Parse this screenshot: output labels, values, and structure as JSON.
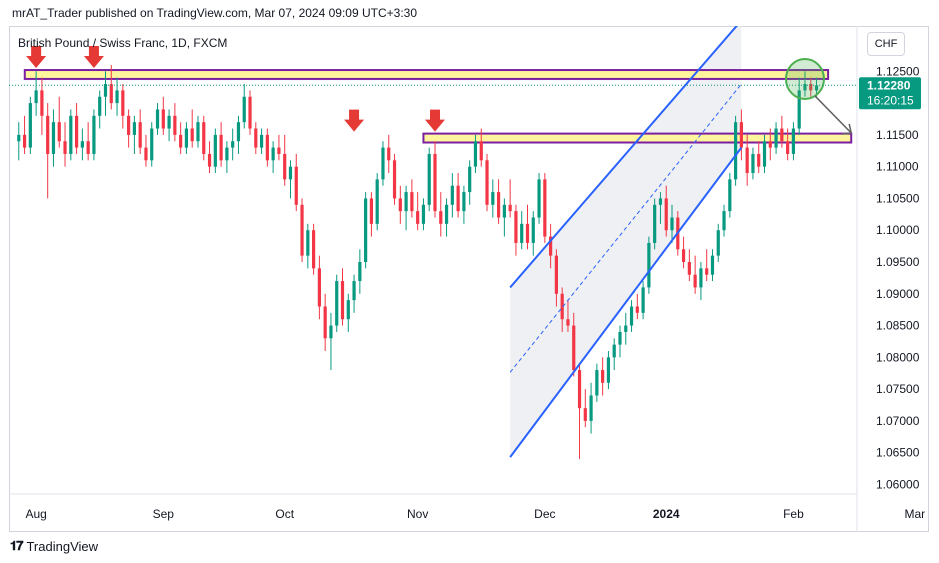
{
  "header": {
    "published": "mrAT_Trader published on TradingView.com, Mar 07, 2024 09:09 UTC+3:30"
  },
  "symbol": {
    "title": "British Pound / Swiss Franc, 1D, FXCM"
  },
  "currency": {
    "label": "CHF"
  },
  "footer": {
    "brand": "TradingView"
  },
  "colors": {
    "up": "#089981",
    "down": "#f23645",
    "channel": "#2962ff",
    "zone_border": "#7b1fa2",
    "zone_fill": "#fff59d",
    "arrow": "#e53935",
    "circle": "#4caf50",
    "price_label": "#089981"
  },
  "chart_data": {
    "type": "candlestick",
    "symbol": "British Pound / Swiss Franc",
    "timeframe": "1D",
    "source": "FXCM",
    "ylim": [
      1.0585,
      1.1315
    ],
    "y_ticks": [
      "1.12500",
      "1.11500",
      "1.11000",
      "1.10500",
      "1.10000",
      "1.09500",
      "1.09000",
      "1.08500",
      "1.08000",
      "1.07500",
      "1.07000",
      "1.06500",
      "1.06000"
    ],
    "x_ticks": [
      {
        "label": "Aug",
        "index": 3
      },
      {
        "label": "Sep",
        "index": 25
      },
      {
        "label": "Oct",
        "index": 46
      },
      {
        "label": "Nov",
        "index": 69
      },
      {
        "label": "Dec",
        "index": 91
      },
      {
        "label": "2024",
        "index": 112
      },
      {
        "label": "Feb",
        "index": 134
      },
      {
        "label": "Mar",
        "index": 155
      }
    ],
    "last_price": {
      "value": "1.12280",
      "countdown": "16:20:15"
    },
    "candles": [
      {
        "o": 1.114,
        "h": 1.117,
        "l": 1.111,
        "c": 1.115
      },
      {
        "o": 1.115,
        "h": 1.118,
        "l": 1.112,
        "c": 1.113
      },
      {
        "o": 1.113,
        "h": 1.121,
        "l": 1.112,
        "c": 1.12
      },
      {
        "o": 1.12,
        "h": 1.125,
        "l": 1.118,
        "c": 1.122
      },
      {
        "o": 1.122,
        "h": 1.124,
        "l": 1.115,
        "c": 1.118
      },
      {
        "o": 1.118,
        "h": 1.12,
        "l": 1.105,
        "c": 1.112
      },
      {
        "o": 1.112,
        "h": 1.119,
        "l": 1.11,
        "c": 1.117
      },
      {
        "o": 1.117,
        "h": 1.121,
        "l": 1.113,
        "c": 1.114
      },
      {
        "o": 1.114,
        "h": 1.117,
        "l": 1.11,
        "c": 1.112
      },
      {
        "o": 1.112,
        "h": 1.119,
        "l": 1.111,
        "c": 1.118
      },
      {
        "o": 1.118,
        "h": 1.12,
        "l": 1.112,
        "c": 1.113
      },
      {
        "o": 1.113,
        "h": 1.116,
        "l": 1.111,
        "c": 1.114
      },
      {
        "o": 1.114,
        "h": 1.117,
        "l": 1.111,
        "c": 1.112
      },
      {
        "o": 1.112,
        "h": 1.119,
        "l": 1.111,
        "c": 1.118
      },
      {
        "o": 1.118,
        "h": 1.122,
        "l": 1.116,
        "c": 1.121
      },
      {
        "o": 1.121,
        "h": 1.125,
        "l": 1.118,
        "c": 1.123
      },
      {
        "o": 1.123,
        "h": 1.126,
        "l": 1.119,
        "c": 1.12
      },
      {
        "o": 1.12,
        "h": 1.124,
        "l": 1.118,
        "c": 1.122
      },
      {
        "o": 1.122,
        "h": 1.123,
        "l": 1.116,
        "c": 1.118
      },
      {
        "o": 1.118,
        "h": 1.119,
        "l": 1.113,
        "c": 1.115
      },
      {
        "o": 1.115,
        "h": 1.118,
        "l": 1.112,
        "c": 1.117
      },
      {
        "o": 1.117,
        "h": 1.119,
        "l": 1.112,
        "c": 1.113
      },
      {
        "o": 1.113,
        "h": 1.115,
        "l": 1.11,
        "c": 1.111
      },
      {
        "o": 1.111,
        "h": 1.117,
        "l": 1.11,
        "c": 1.116
      },
      {
        "o": 1.116,
        "h": 1.12,
        "l": 1.115,
        "c": 1.119
      },
      {
        "o": 1.119,
        "h": 1.121,
        "l": 1.115,
        "c": 1.116
      },
      {
        "o": 1.116,
        "h": 1.119,
        "l": 1.114,
        "c": 1.118
      },
      {
        "o": 1.118,
        "h": 1.12,
        "l": 1.114,
        "c": 1.115
      },
      {
        "o": 1.115,
        "h": 1.117,
        "l": 1.112,
        "c": 1.113
      },
      {
        "o": 1.113,
        "h": 1.117,
        "l": 1.112,
        "c": 1.116
      },
      {
        "o": 1.116,
        "h": 1.119,
        "l": 1.113,
        "c": 1.114
      },
      {
        "o": 1.114,
        "h": 1.118,
        "l": 1.113,
        "c": 1.117
      },
      {
        "o": 1.117,
        "h": 1.118,
        "l": 1.111,
        "c": 1.112
      },
      {
        "o": 1.112,
        "h": 1.114,
        "l": 1.109,
        "c": 1.11
      },
      {
        "o": 1.11,
        "h": 1.116,
        "l": 1.109,
        "c": 1.115
      },
      {
        "o": 1.115,
        "h": 1.117,
        "l": 1.11,
        "c": 1.111
      },
      {
        "o": 1.111,
        "h": 1.114,
        "l": 1.109,
        "c": 1.113
      },
      {
        "o": 1.113,
        "h": 1.116,
        "l": 1.111,
        "c": 1.114
      },
      {
        "o": 1.114,
        "h": 1.118,
        "l": 1.112,
        "c": 1.117
      },
      {
        "o": 1.117,
        "h": 1.123,
        "l": 1.116,
        "c": 1.121
      },
      {
        "o": 1.121,
        "h": 1.122,
        "l": 1.115,
        "c": 1.116
      },
      {
        "o": 1.116,
        "h": 1.117,
        "l": 1.112,
        "c": 1.113
      },
      {
        "o": 1.113,
        "h": 1.116,
        "l": 1.112,
        "c": 1.115
      },
      {
        "o": 1.115,
        "h": 1.116,
        "l": 1.11,
        "c": 1.111
      },
      {
        "o": 1.111,
        "h": 1.114,
        "l": 1.109,
        "c": 1.113
      },
      {
        "o": 1.113,
        "h": 1.115,
        "l": 1.111,
        "c": 1.112
      },
      {
        "o": 1.112,
        "h": 1.115,
        "l": 1.107,
        "c": 1.108
      },
      {
        "o": 1.108,
        "h": 1.111,
        "l": 1.105,
        "c": 1.11
      },
      {
        "o": 1.11,
        "h": 1.112,
        "l": 1.103,
        "c": 1.104
      },
      {
        "o": 1.104,
        "h": 1.105,
        "l": 1.095,
        "c": 1.096
      },
      {
        "o": 1.096,
        "h": 1.101,
        "l": 1.094,
        "c": 1.1
      },
      {
        "o": 1.1,
        "h": 1.101,
        "l": 1.093,
        "c": 1.094
      },
      {
        "o": 1.094,
        "h": 1.096,
        "l": 1.086,
        "c": 1.088
      },
      {
        "o": 1.088,
        "h": 1.09,
        "l": 1.081,
        "c": 1.083
      },
      {
        "o": 1.083,
        "h": 1.087,
        "l": 1.078,
        "c": 1.085
      },
      {
        "o": 1.085,
        "h": 1.093,
        "l": 1.084,
        "c": 1.092
      },
      {
        "o": 1.092,
        "h": 1.094,
        "l": 1.085,
        "c": 1.086
      },
      {
        "o": 1.086,
        "h": 1.09,
        "l": 1.084,
        "c": 1.089
      },
      {
        "o": 1.089,
        "h": 1.093,
        "l": 1.087,
        "c": 1.092
      },
      {
        "o": 1.092,
        "h": 1.097,
        "l": 1.09,
        "c": 1.095
      },
      {
        "o": 1.095,
        "h": 1.106,
        "l": 1.094,
        "c": 1.105
      },
      {
        "o": 1.105,
        "h": 1.106,
        "l": 1.099,
        "c": 1.101
      },
      {
        "o": 1.101,
        "h": 1.109,
        "l": 1.1,
        "c": 1.108
      },
      {
        "o": 1.108,
        "h": 1.114,
        "l": 1.107,
        "c": 1.113
      },
      {
        "o": 1.113,
        "h": 1.115,
        "l": 1.109,
        "c": 1.111
      },
      {
        "o": 1.111,
        "h": 1.112,
        "l": 1.104,
        "c": 1.105
      },
      {
        "o": 1.105,
        "h": 1.107,
        "l": 1.101,
        "c": 1.103
      },
      {
        "o": 1.103,
        "h": 1.107,
        "l": 1.1,
        "c": 1.106
      },
      {
        "o": 1.106,
        "h": 1.108,
        "l": 1.102,
        "c": 1.103
      },
      {
        "o": 1.103,
        "h": 1.106,
        "l": 1.1,
        "c": 1.101
      },
      {
        "o": 1.101,
        "h": 1.105,
        "l": 1.1,
        "c": 1.104
      },
      {
        "o": 1.104,
        "h": 1.113,
        "l": 1.103,
        "c": 1.112
      },
      {
        "o": 1.112,
        "h": 1.114,
        "l": 1.102,
        "c": 1.103
      },
      {
        "o": 1.103,
        "h": 1.106,
        "l": 1.099,
        "c": 1.101
      },
      {
        "o": 1.101,
        "h": 1.105,
        "l": 1.099,
        "c": 1.104
      },
      {
        "o": 1.104,
        "h": 1.109,
        "l": 1.102,
        "c": 1.107
      },
      {
        "o": 1.107,
        "h": 1.109,
        "l": 1.102,
        "c": 1.103
      },
      {
        "o": 1.103,
        "h": 1.107,
        "l": 1.101,
        "c": 1.106
      },
      {
        "o": 1.106,
        "h": 1.111,
        "l": 1.104,
        "c": 1.11
      },
      {
        "o": 1.11,
        "h": 1.115,
        "l": 1.109,
        "c": 1.114
      },
      {
        "o": 1.114,
        "h": 1.116,
        "l": 1.11,
        "c": 1.111
      },
      {
        "o": 1.111,
        "h": 1.112,
        "l": 1.103,
        "c": 1.104
      },
      {
        "o": 1.104,
        "h": 1.108,
        "l": 1.102,
        "c": 1.106
      },
      {
        "o": 1.106,
        "h": 1.108,
        "l": 1.101,
        "c": 1.102
      },
      {
        "o": 1.102,
        "h": 1.105,
        "l": 1.099,
        "c": 1.104
      },
      {
        "o": 1.104,
        "h": 1.108,
        "l": 1.102,
        "c": 1.103
      },
      {
        "o": 1.103,
        "h": 1.104,
        "l": 1.096,
        "c": 1.098
      },
      {
        "o": 1.098,
        "h": 1.103,
        "l": 1.097,
        "c": 1.101
      },
      {
        "o": 1.101,
        "h": 1.104,
        "l": 1.097,
        "c": 1.098
      },
      {
        "o": 1.098,
        "h": 1.103,
        "l": 1.096,
        "c": 1.102
      },
      {
        "o": 1.102,
        "h": 1.109,
        "l": 1.101,
        "c": 1.108
      },
      {
        "o": 1.108,
        "h": 1.109,
        "l": 1.098,
        "c": 1.099
      },
      {
        "o": 1.099,
        "h": 1.101,
        "l": 1.094,
        "c": 1.096
      },
      {
        "o": 1.096,
        "h": 1.097,
        "l": 1.088,
        "c": 1.09
      },
      {
        "o": 1.09,
        "h": 1.091,
        "l": 1.084,
        "c": 1.086
      },
      {
        "o": 1.086,
        "h": 1.089,
        "l": 1.084,
        "c": 1.085
      },
      {
        "o": 1.085,
        "h": 1.087,
        "l": 1.077,
        "c": 1.078
      },
      {
        "o": 1.078,
        "h": 1.079,
        "l": 1.064,
        "c": 1.072
      },
      {
        "o": 1.072,
        "h": 1.075,
        "l": 1.069,
        "c": 1.07
      },
      {
        "o": 1.07,
        "h": 1.076,
        "l": 1.068,
        "c": 1.074
      },
      {
        "o": 1.074,
        "h": 1.079,
        "l": 1.073,
        "c": 1.078
      },
      {
        "o": 1.078,
        "h": 1.08,
        "l": 1.074,
        "c": 1.076
      },
      {
        "o": 1.076,
        "h": 1.081,
        "l": 1.075,
        "c": 1.08
      },
      {
        "o": 1.08,
        "h": 1.083,
        "l": 1.078,
        "c": 1.082
      },
      {
        "o": 1.082,
        "h": 1.085,
        "l": 1.08,
        "c": 1.084
      },
      {
        "o": 1.084,
        "h": 1.087,
        "l": 1.082,
        "c": 1.085
      },
      {
        "o": 1.085,
        "h": 1.089,
        "l": 1.084,
        "c": 1.088
      },
      {
        "o": 1.088,
        "h": 1.09,
        "l": 1.086,
        "c": 1.087
      },
      {
        "o": 1.087,
        "h": 1.092,
        "l": 1.086,
        "c": 1.091
      },
      {
        "o": 1.091,
        "h": 1.099,
        "l": 1.09,
        "c": 1.098
      },
      {
        "o": 1.098,
        "h": 1.105,
        "l": 1.097,
        "c": 1.104
      },
      {
        "o": 1.104,
        "h": 1.106,
        "l": 1.101,
        "c": 1.105
      },
      {
        "o": 1.105,
        "h": 1.107,
        "l": 1.099,
        "c": 1.1
      },
      {
        "o": 1.1,
        "h": 1.104,
        "l": 1.098,
        "c": 1.102
      },
      {
        "o": 1.102,
        "h": 1.103,
        "l": 1.096,
        "c": 1.097
      },
      {
        "o": 1.097,
        "h": 1.099,
        "l": 1.094,
        "c": 1.095
      },
      {
        "o": 1.095,
        "h": 1.097,
        "l": 1.092,
        "c": 1.093
      },
      {
        "o": 1.093,
        "h": 1.096,
        "l": 1.09,
        "c": 1.091
      },
      {
        "o": 1.091,
        "h": 1.095,
        "l": 1.089,
        "c": 1.094
      },
      {
        "o": 1.094,
        "h": 1.097,
        "l": 1.092,
        "c": 1.093
      },
      {
        "o": 1.093,
        "h": 1.097,
        "l": 1.092,
        "c": 1.096
      },
      {
        "o": 1.096,
        "h": 1.101,
        "l": 1.095,
        "c": 1.1
      },
      {
        "o": 1.1,
        "h": 1.104,
        "l": 1.099,
        "c": 1.103
      },
      {
        "o": 1.103,
        "h": 1.109,
        "l": 1.102,
        "c": 1.108
      },
      {
        "o": 1.108,
        "h": 1.118,
        "l": 1.107,
        "c": 1.117
      },
      {
        "o": 1.117,
        "h": 1.119,
        "l": 1.111,
        "c": 1.113
      },
      {
        "o": 1.113,
        "h": 1.115,
        "l": 1.107,
        "c": 1.109
      },
      {
        "o": 1.109,
        "h": 1.113,
        "l": 1.108,
        "c": 1.112
      },
      {
        "o": 1.112,
        "h": 1.114,
        "l": 1.109,
        "c": 1.11
      },
      {
        "o": 1.11,
        "h": 1.115,
        "l": 1.109,
        "c": 1.114
      },
      {
        "o": 1.114,
        "h": 1.116,
        "l": 1.111,
        "c": 1.113
      },
      {
        "o": 1.113,
        "h": 1.117,
        "l": 1.112,
        "c": 1.116
      },
      {
        "o": 1.116,
        "h": 1.118,
        "l": 1.113,
        "c": 1.114
      },
      {
        "o": 1.114,
        "h": 1.116,
        "l": 1.111,
        "c": 1.112
      },
      {
        "o": 1.112,
        "h": 1.117,
        "l": 1.111,
        "c": 1.116
      },
      {
        "o": 1.116,
        "h": 1.124,
        "l": 1.115,
        "c": 1.122
      },
      {
        "o": 1.122,
        "h": 1.125,
        "l": 1.121,
        "c": 1.123
      },
      {
        "o": 1.123,
        "h": 1.124,
        "l": 1.121,
        "c": 1.122
      },
      {
        "o": 1.122,
        "h": 1.124,
        "l": 1.121,
        "c": 1.1228
      }
    ]
  },
  "annotations": {
    "resistance_zones": [
      {
        "low": 1.1238,
        "high": 1.1252
      },
      {
        "low": 1.1138,
        "high": 1.1152
      }
    ],
    "arrows_at": [
      3,
      13,
      58,
      72
    ],
    "channel": {
      "upper": [
        [
          85,
          1.091
        ],
        [
          125,
          1.133
        ]
      ],
      "lower": [
        [
          85,
          1.0643
        ],
        [
          125,
          1.113
        ]
      ]
    }
  }
}
